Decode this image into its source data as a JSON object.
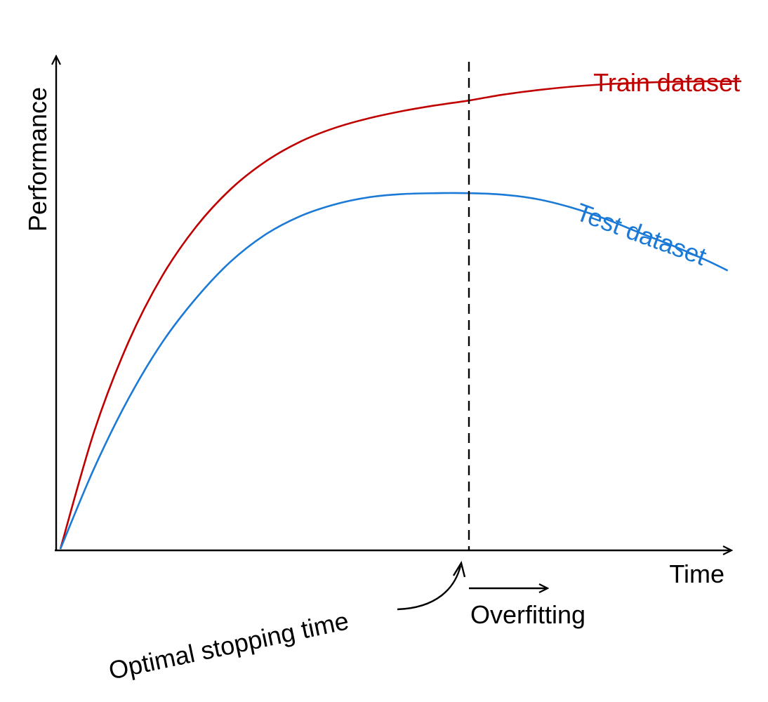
{
  "chart_data": {
    "type": "line",
    "xlabel": "Time",
    "ylabel": "Performance",
    "xlim": [
      0,
      1
    ],
    "ylim": [
      0,
      1
    ],
    "grid": false,
    "series": [
      {
        "name": "Train dataset",
        "color": "#c00000",
        "x": [
          0,
          0.05,
          0.1,
          0.15,
          0.2,
          0.25,
          0.3,
          0.35,
          0.4,
          0.45,
          0.5,
          0.55,
          0.6,
          0.65,
          0.7,
          0.75,
          0.8,
          0.85,
          0.9,
          0.95,
          1.0
        ],
        "y": [
          0,
          0.24,
          0.42,
          0.555,
          0.655,
          0.73,
          0.785,
          0.825,
          0.853,
          0.873,
          0.888,
          0.9,
          0.91,
          0.922,
          0.931,
          0.938,
          0.943,
          0.946,
          0.948,
          0.949,
          0.949
        ]
      },
      {
        "name": "Test dataset",
        "color": "#1a7ad6",
        "x": [
          0,
          0.05,
          0.1,
          0.15,
          0.2,
          0.25,
          0.3,
          0.35,
          0.4,
          0.45,
          0.5,
          0.55,
          0.6,
          0.65,
          0.7,
          0.75,
          0.8,
          0.85,
          0.9,
          0.95,
          0.98
        ],
        "y": [
          0,
          0.165,
          0.305,
          0.42,
          0.51,
          0.583,
          0.637,
          0.674,
          0.698,
          0.713,
          0.72,
          0.722,
          0.722,
          0.719,
          0.71,
          0.693,
          0.67,
          0.642,
          0.615,
          0.585,
          0.565
        ]
      }
    ],
    "annotations": {
      "stop_x": 0.6,
      "optimal_label": "Optimal stopping time",
      "overfit_label": "Overfitting"
    }
  }
}
